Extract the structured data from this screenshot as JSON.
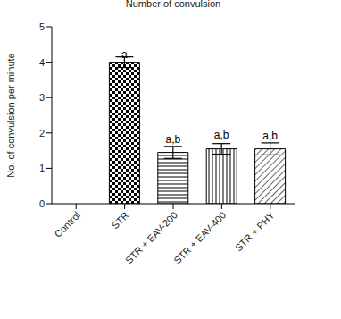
{
  "chart_data": {
    "type": "bar",
    "title": "Number of convulsion",
    "y_label": "No. of convulsion per minute",
    "categories": [
      "Control",
      "STR",
      "STR + EAV-200",
      "STR + EAV-400",
      "STR + PHY"
    ],
    "values": [
      0,
      4.0,
      1.45,
      1.55,
      1.55
    ],
    "errors": [
      0,
      0.15,
      0.17,
      0.15,
      0.17
    ],
    "annotations": [
      null,
      "a",
      "a,b",
      "a,b",
      "a,b"
    ],
    "color": "#000000",
    "ylim": [
      0,
      5
    ],
    "yticks": [
      0,
      1,
      2,
      3,
      4,
      5
    ],
    "grid": false
  }
}
